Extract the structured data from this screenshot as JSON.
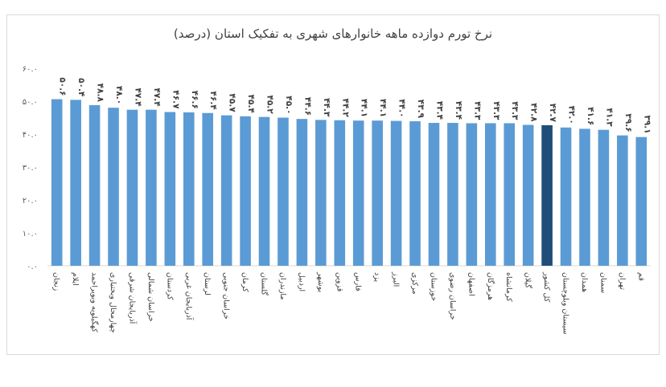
{
  "chart_data": {
    "type": "bar",
    "title": "نرخ تورم دوازده ماهه خانوارهای شهری به تفکیک استان (درصد)",
    "ylim": [
      0,
      60
    ],
    "yticks": [
      "۰.۰",
      "۱۰.۰",
      "۲۰.۰",
      "۳۰.۰",
      "۴۰.۰",
      "۵۰.۰",
      "۶۰.۰"
    ],
    "ytick_values": [
      0,
      10,
      20,
      30,
      40,
      50,
      60
    ],
    "grid": false,
    "bar_color": "#5b9bd5",
    "highlight_color": "#1f4e79",
    "highlight_category": "کل کشور",
    "categories": [
      "زنجان",
      "ایلام",
      "کهگیلویه وبویراحمد",
      "چهارمحال وبختیاری",
      "آذربایجان شرقی",
      "خراسان شمالی",
      "کردستان",
      "آذربایجان غربی",
      "لرستان",
      "خراسان جنوبی",
      "کرمان",
      "گلستان",
      "مازندران",
      "اردبیل",
      "بوشهر",
      "قزوین",
      "فارس",
      "یزد",
      "البرز",
      "مرکزی",
      "خوزستان",
      "خراسان رضوی",
      "اصفهان",
      "هرمزگان",
      "کرمانشاه",
      "گیلان",
      "کل کشور",
      "سیستان وبلوچستان",
      "همدان",
      "سمنان",
      "تهران",
      "قم"
    ],
    "values": [
      50.6,
      50.4,
      48.8,
      48.0,
      47.4,
      47.4,
      46.7,
      46.6,
      46.4,
      45.7,
      45.4,
      45.2,
      45.0,
      44.6,
      44.3,
      44.2,
      44.1,
      44.1,
      44.0,
      43.9,
      43.4,
      43.4,
      43.3,
      43.3,
      43.3,
      42.8,
      42.7,
      42.0,
      41.6,
      41.3,
      39.6,
      39.1
    ],
    "value_labels": [
      "۵۰.۶",
      "۵۰.۴",
      "۴۸.۸",
      "۴۸.۰",
      "۴۷.۴",
      "۴۷.۴",
      "۴۶.۷",
      "۴۶.۶",
      "۴۶.۴",
      "۴۵.۷",
      "۴۵.۴",
      "۴۵.۲",
      "۴۵.۰",
      "۴۴.۶",
      "۴۴.۳",
      "۴۴.۲",
      "۴۴.۱",
      "۴۴.۱",
      "۴۴.۰",
      "۴۳.۹",
      "۴۳.۴",
      "۴۳.۴",
      "۴۳.۳",
      "۴۳.۳",
      "۴۳.۳",
      "۴۲.۸",
      "۴۲.۷",
      "۴۲.۰",
      "۴۱.۶",
      "۴۱.۳",
      "۳۹.۶",
      "۳۹.۱"
    ]
  }
}
